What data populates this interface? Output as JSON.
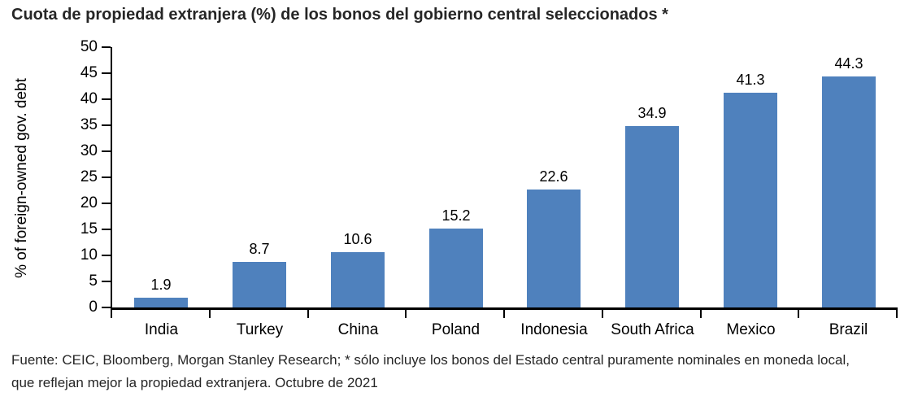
{
  "title": "Cuota de propiedad extranjera (%) de los bonos del gobierno central seleccionados *",
  "footer": "Fuente:  CEIC, Bloomberg, Morgan Stanley Research; * sólo incluye los bonos del Estado central puramente nominales en moneda local, que reflejan mejor la propiedad extranjera. Octubre de 2021",
  "colors": {
    "bar": "#4F81BD",
    "axis": "#000000",
    "title_text": "#262626",
    "label_text": "#000000"
  },
  "chart_data": {
    "type": "bar",
    "title": "Cuota de propiedad extranjera (%) de los bonos del gobierno central seleccionados *",
    "categories": [
      "India",
      "Turkey",
      "China",
      "Poland",
      "Indonesia",
      "South Africa",
      "Mexico",
      "Brazil"
    ],
    "values": [
      1.9,
      8.7,
      10.6,
      15.2,
      22.6,
      34.9,
      41.3,
      44.3
    ],
    "data_labels": [
      "1.9",
      "8.7",
      "10.6",
      "15.2",
      "22.6",
      "34.9",
      "41.3",
      "44.3"
    ],
    "xlabel": "",
    "ylabel": "% of foreign-owned gov. debt",
    "ylim": [
      0,
      50
    ],
    "ytick_step": 5,
    "grid": false,
    "legend_position": "none",
    "source": "Fuente:  CEIC, Bloomberg, Morgan Stanley Research; * sólo incluye los bonos del Estado central puramente nominales en moneda local, que reflejan mejor la propiedad extranjera. Octubre de 2021"
  }
}
